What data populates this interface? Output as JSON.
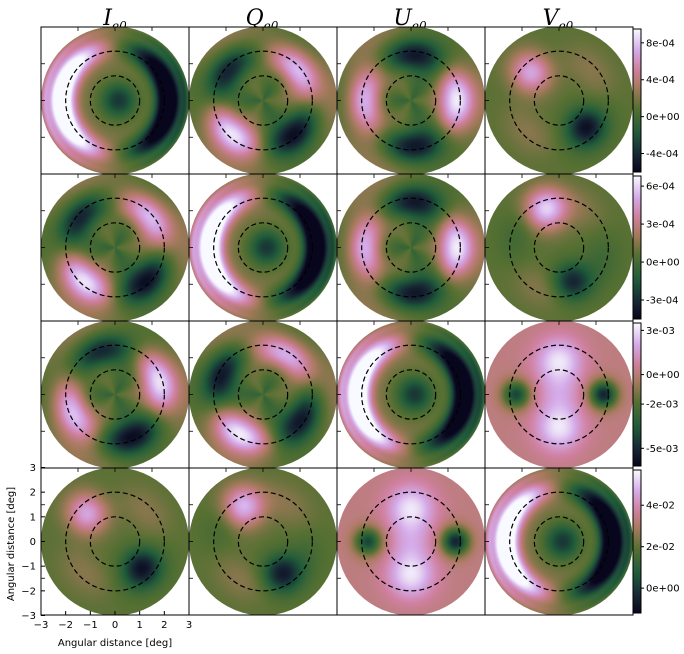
{
  "chart_data": {
    "type": "heatmap",
    "layout": {
      "rows": 4,
      "cols": 4
    },
    "colormap": "cubehelix",
    "column_titles": [
      {
        "base": "I",
        "sub": "e0"
      },
      {
        "base": "Q",
        "sub": "e0"
      },
      {
        "base": "U",
        "sub": "e0"
      },
      {
        "base": "V",
        "sub": "e0"
      }
    ],
    "xlabel": "Angular distance [deg]",
    "ylabel": "Angular distance [deg]",
    "xlim": [
      -3,
      3
    ],
    "ylim": [
      -3,
      3
    ],
    "xticks": [
      "−3",
      "−2",
      "−1",
      "0",
      "1",
      "2",
      "3"
    ],
    "yticks": [
      "3",
      "2",
      "1",
      "0",
      "−1",
      "−2",
      "−3"
    ],
    "dashed_circle_radii_deg": [
      1,
      2
    ],
    "colorbars": [
      {
        "ticks": [
          "8e-04",
          "4e-04",
          "0e+00",
          "-4e-04"
        ],
        "tick_values": [
          0.0008,
          0.0004,
          0.0,
          -0.0004
        ],
        "range": [
          -0.0006,
          0.00095
        ]
      },
      {
        "ticks": [
          "6e-04",
          "3e-04",
          "0e+00",
          "-3e-04"
        ],
        "tick_values": [
          0.0006,
          0.0003,
          0.0,
          -0.0003
        ],
        "range": [
          -0.00045,
          0.00068
        ]
      },
      {
        "ticks": [
          "3e-03",
          "0e+00",
          "-2e-03",
          "-5e-03"
        ],
        "tick_values": [
          0.003,
          0.0,
          -0.002,
          -0.005
        ],
        "range": [
          -0.0062,
          0.0035
        ]
      },
      {
        "ticks": [
          "4e-02",
          "2e-02",
          "0e+00"
        ],
        "tick_values": [
          0.04,
          0.02,
          0.0
        ],
        "range": [
          -0.012,
          0.057
        ]
      }
    ],
    "panels": [
      [
        {
          "pattern": "crescent",
          "angle": 0,
          "orient": "left"
        },
        {
          "pattern": "quad",
          "angle": 45
        },
        {
          "pattern": "quad",
          "angle": 0
        },
        {
          "pattern": "pointlobe",
          "angle": 225
        }
      ],
      [
        {
          "pattern": "quad",
          "angle": 45
        },
        {
          "pattern": "crescent",
          "angle": 0,
          "orient": "left"
        },
        {
          "pattern": "quad",
          "angle": 0
        },
        {
          "pattern": "pointlobe",
          "angle": 250
        }
      ],
      [
        {
          "pattern": "quad",
          "angle": 20
        },
        {
          "pattern": "quad",
          "angle": 60
        },
        {
          "pattern": "crescent",
          "angle": 0,
          "orient": "left"
        },
        {
          "pattern": "dipoleV"
        }
      ],
      [
        {
          "pattern": "pointlobe",
          "angle": 225
        },
        {
          "pattern": "pointlobe",
          "angle": 240
        },
        {
          "pattern": "dipoleV"
        },
        {
          "pattern": "crescent",
          "angle": 0,
          "orient": "left"
        }
      ]
    ]
  }
}
